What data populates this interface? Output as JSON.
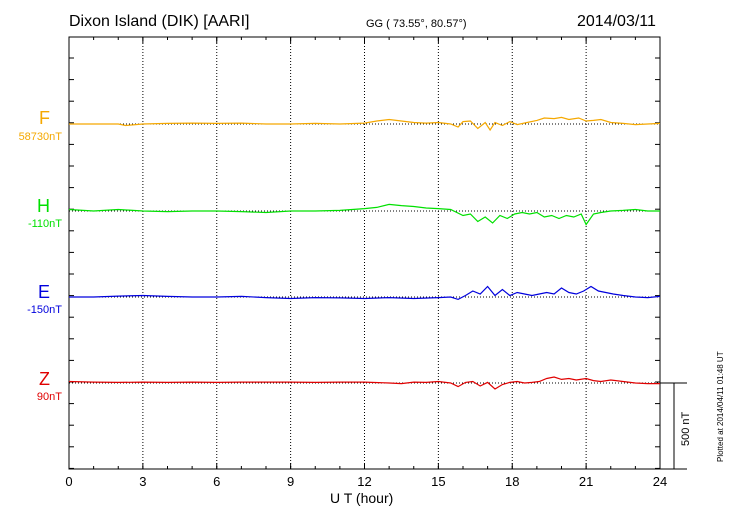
{
  "header": {
    "station": "Dixon Island (DIK)  [AARI]",
    "coords": "GG ( 73.55°,  80.57°)",
    "date": "2014/03/11"
  },
  "chart_data": {
    "type": "line",
    "xlabel": "U T (hour)",
    "xlim": [
      0,
      24
    ],
    "xticks": [
      "0",
      "3",
      "6",
      "9",
      "12",
      "15",
      "18",
      "21",
      "24"
    ],
    "scale_bar_nT": 500,
    "scale_label": "500 nT",
    "series": [
      {
        "name": "F",
        "baseline": "58730nT",
        "color": "#f5a800",
        "x": [
          0,
          1,
          2,
          2.3,
          3,
          4,
          5,
          6,
          7,
          8,
          9,
          10,
          11,
          12,
          12.5,
          13,
          13.5,
          14,
          14.5,
          15,
          15.5,
          15.8,
          16,
          16.3,
          16.6,
          16.9,
          17.1,
          17.3,
          17.6,
          17.9,
          18.2,
          18.6,
          19,
          19.3,
          19.7,
          20,
          20.3,
          20.7,
          21,
          21.3,
          21.6,
          22,
          22.5,
          23,
          23.5,
          24
        ],
        "y": [
          0,
          0,
          0,
          -0.05,
          0,
          0.02,
          0.03,
          0.02,
          0.03,
          0,
          0,
          0.02,
          0,
          0.03,
          0.1,
          0.15,
          0.1,
          0.05,
          0.03,
          0.05,
          0,
          -0.1,
          0.08,
          0.1,
          -0.15,
          0.05,
          -0.2,
          0.05,
          -0.05,
          0.08,
          -0.02,
          0.05,
          0.12,
          0.2,
          0.18,
          0.22,
          0.15,
          0.2,
          0.1,
          0.12,
          0.15,
          0.05,
          0.02,
          -0.02,
          0,
          0.02
        ]
      },
      {
        "name": "H",
        "baseline": "-110nT",
        "color": "#00e000",
        "x": [
          0,
          1,
          2,
          3,
          4,
          5,
          6,
          7,
          8,
          9,
          10,
          11,
          11.5,
          12,
          12.5,
          13,
          13.5,
          14,
          14.5,
          15,
          15.5,
          16,
          16.3,
          16.6,
          16.9,
          17.2,
          17.5,
          17.8,
          18.1,
          18.4,
          18.7,
          19,
          19.3,
          19.6,
          19.9,
          20.2,
          20.5,
          20.8,
          21,
          21.3,
          21.6,
          22,
          22.5,
          23,
          23.5,
          24
        ],
        "y": [
          0.05,
          0,
          0.05,
          0,
          -0.02,
          0,
          0,
          -0.02,
          -0.05,
          0,
          0,
          0.02,
          0.05,
          0.08,
          0.12,
          0.22,
          0.18,
          0.15,
          0.1,
          0.08,
          0.05,
          -0.15,
          -0.1,
          -0.35,
          -0.2,
          -0.4,
          -0.15,
          -0.25,
          -0.1,
          -0.05,
          -0.1,
          -0.05,
          -0.2,
          -0.15,
          -0.25,
          -0.15,
          -0.2,
          -0.1,
          -0.45,
          -0.1,
          -0.05,
          0,
          0.02,
          0.05,
          0,
          0
        ]
      },
      {
        "name": "E",
        "baseline": "-150nT",
        "color": "#0000dd",
        "x": [
          0,
          1,
          2,
          3,
          4,
          5,
          6,
          7,
          8,
          9,
          10,
          11,
          12,
          13,
          14,
          15,
          15.5,
          15.8,
          16.1,
          16.4,
          16.7,
          17,
          17.3,
          17.6,
          17.9,
          18.2,
          18.5,
          18.8,
          19.1,
          19.4,
          19.7,
          20,
          20.3,
          20.6,
          20.9,
          21.2,
          21.5,
          21.8,
          22.1,
          22.5,
          23,
          23.5,
          24
        ],
        "y": [
          0,
          0,
          0.03,
          0.05,
          0.02,
          0,
          0,
          0.02,
          -0.02,
          -0.05,
          -0.02,
          -0.03,
          -0.05,
          -0.02,
          -0.05,
          -0.02,
          0,
          -0.08,
          0.05,
          0.2,
          0.1,
          0.35,
          0.05,
          0.25,
          0.05,
          0.15,
          0.1,
          0.05,
          0.1,
          0.15,
          0.1,
          0.3,
          0.15,
          0.1,
          0.2,
          0.35,
          0.2,
          0.15,
          0.1,
          0.05,
          0,
          -0.02,
          0.02
        ]
      },
      {
        "name": "Z",
        "baseline": "90nT",
        "color": "#e00000",
        "x": [
          0,
          1,
          2,
          3,
          4,
          5,
          6,
          7,
          8,
          9,
          10,
          11,
          12,
          13,
          13.5,
          14,
          14.5,
          15,
          15.5,
          15.8,
          16.1,
          16.4,
          16.7,
          17,
          17.3,
          17.6,
          17.9,
          18.2,
          18.5,
          18.8,
          19.1,
          19.4,
          19.7,
          20,
          20.3,
          20.6,
          21,
          21.3,
          21.6,
          22,
          22.5,
          23,
          23.5,
          24
        ],
        "y": [
          0.05,
          0.03,
          0.02,
          0.03,
          0.02,
          0.03,
          0.02,
          0.03,
          0.03,
          0.03,
          0.02,
          0.03,
          0.03,
          0,
          -0.02,
          0.03,
          0.02,
          0.05,
          0,
          -0.12,
          0.02,
          0.05,
          -0.1,
          0.02,
          -0.2,
          -0.05,
          0.02,
          0.05,
          0,
          0.02,
          0.05,
          0.15,
          0.2,
          0.12,
          0.15,
          0.1,
          0.15,
          0.08,
          0.05,
          0.1,
          0.05,
          0,
          -0.02,
          -0.02
        ]
      }
    ]
  },
  "footer": {
    "plotted": "Plotted at 2014/04/11 01:48 UT"
  }
}
